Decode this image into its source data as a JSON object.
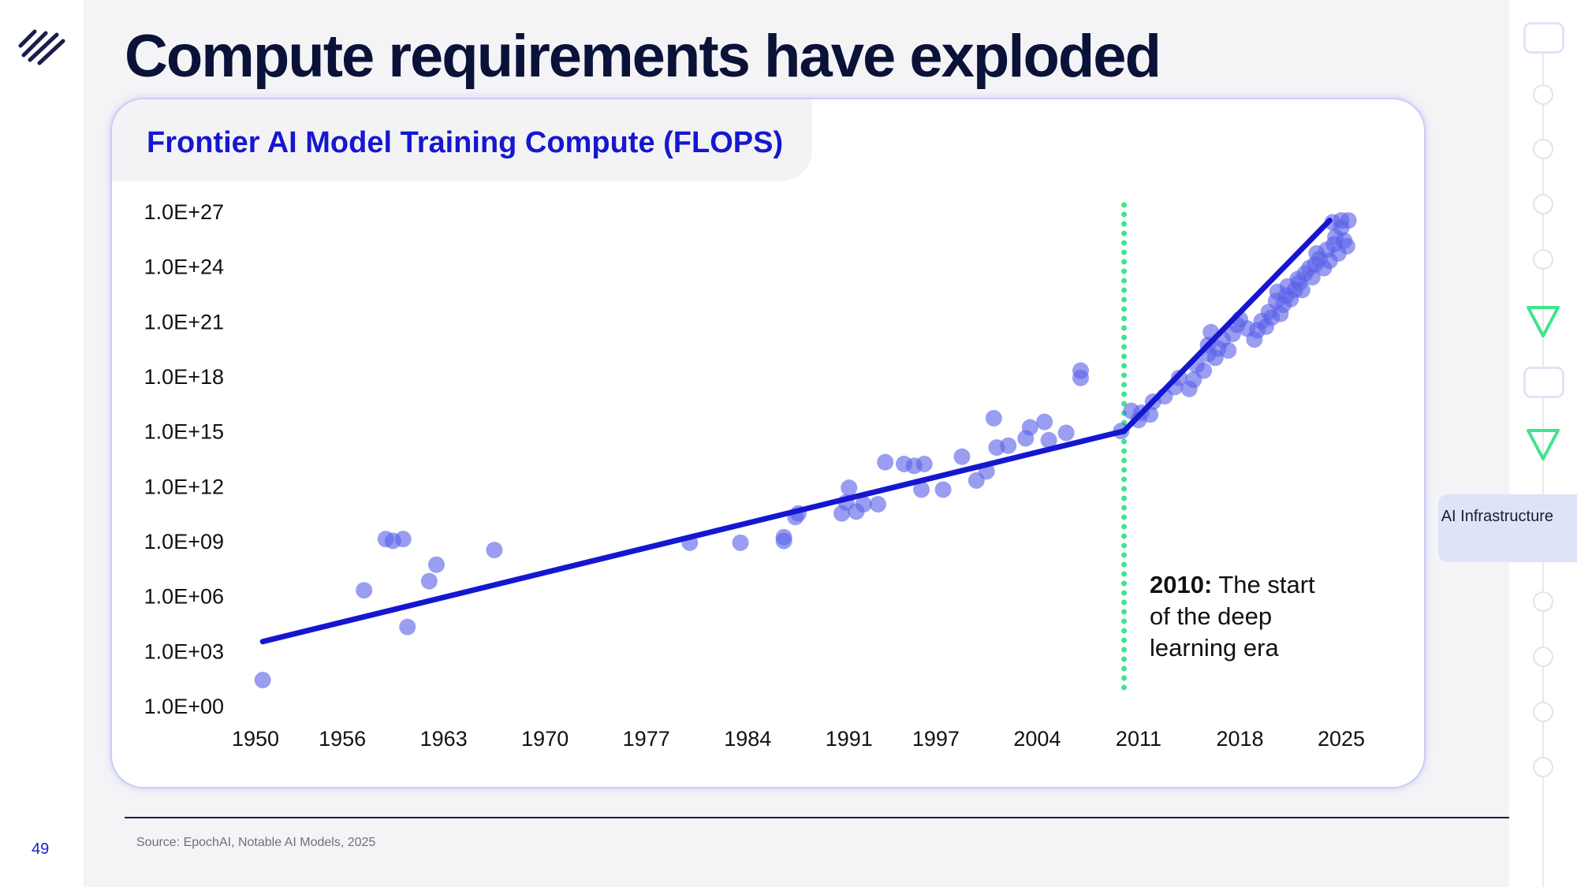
{
  "slide": {
    "title": "Compute requirements have exploded",
    "page_number": "49",
    "source": "Source: EpochAI, Notable AI Models, 2025"
  },
  "nav": {
    "active_label": "AI Infrastructure"
  },
  "colors": {
    "accent": "#1517d0",
    "points": "#5b63e8",
    "marker_line": "#3ee58a",
    "title": "#0a1238"
  },
  "chart_data": {
    "type": "scatter",
    "title": "Frontier AI Model Training Compute (FLOPS)",
    "xlabel": "",
    "ylabel": "",
    "x_ticks": [
      1950,
      1956,
      1963,
      1970,
      1977,
      1984,
      1991,
      1997,
      2004,
      2011,
      2018,
      2025
    ],
    "y_ticks": [
      "1.0E+00",
      "1.0E+03",
      "1.0E+06",
      "1.0E+09",
      "1.0E+12",
      "1.0E+15",
      "1.0E+18",
      "1.0E+21",
      "1.0E+24",
      "1.0E+27"
    ],
    "y_scale": "log",
    "y_range_log10": [
      0,
      27
    ],
    "x_range": [
      1950,
      2025
    ],
    "grid": false,
    "annotation": {
      "x": 2010,
      "bold": "2010:",
      "lines": [
        " The start",
        "of the deep",
        "learning era"
      ]
    },
    "trend_lines": [
      {
        "name": "",
        "points": [
          [
            1950.5,
            3.5
          ],
          [
            2010,
            15.0
          ]
        ]
      },
      {
        "name": "",
        "points": [
          [
            2010,
            15.0
          ],
          [
            2024.2,
            26.5
          ]
        ]
      }
    ],
    "points_log10": [
      [
        1950.5,
        1.4
      ],
      [
        1957.5,
        6.3
      ],
      [
        1959.0,
        9.1
      ],
      [
        1959.5,
        9.0
      ],
      [
        1960.2,
        9.1
      ],
      [
        1960.5,
        4.3
      ],
      [
        1962.0,
        6.8
      ],
      [
        1962.5,
        7.7
      ],
      [
        1966.5,
        8.5
      ],
      [
        1980.0,
        8.9
      ],
      [
        1983.5,
        8.9
      ],
      [
        1986.5,
        9.0
      ],
      [
        1986.5,
        9.2
      ],
      [
        1987.3,
        10.3
      ],
      [
        1987.5,
        10.5
      ],
      [
        1990.5,
        10.5
      ],
      [
        1990.8,
        11.1
      ],
      [
        1991.0,
        11.9
      ],
      [
        1991.5,
        10.6
      ],
      [
        1992.0,
        11.0
      ],
      [
        1993.0,
        11.0
      ],
      [
        1993.5,
        13.3
      ],
      [
        1994.8,
        13.2
      ],
      [
        1995.5,
        13.1
      ],
      [
        1996.0,
        11.8
      ],
      [
        1996.2,
        13.2
      ],
      [
        1997.5,
        11.8
      ],
      [
        1998.8,
        13.6
      ],
      [
        1999.8,
        12.3
      ],
      [
        2000.5,
        12.8
      ],
      [
        2001.0,
        15.7
      ],
      [
        2001.2,
        14.1
      ],
      [
        2002.0,
        14.2
      ],
      [
        2003.2,
        14.6
      ],
      [
        2003.5,
        15.2
      ],
      [
        2004.5,
        15.5
      ],
      [
        2004.8,
        14.5
      ],
      [
        2006.0,
        14.9
      ],
      [
        2007.0,
        17.9
      ],
      [
        2007.0,
        18.3
      ],
      [
        2009.8,
        15.0
      ],
      [
        2010.5,
        16.1
      ],
      [
        2011.0,
        15.6
      ],
      [
        2011.2,
        16.0
      ],
      [
        2011.8,
        15.9
      ],
      [
        2012.0,
        16.6
      ],
      [
        2012.8,
        16.9
      ],
      [
        2013.5,
        17.4
      ],
      [
        2013.8,
        17.9
      ],
      [
        2014.5,
        17.3
      ],
      [
        2014.8,
        17.8
      ],
      [
        2015.0,
        18.6
      ],
      [
        2015.5,
        18.3
      ],
      [
        2015.8,
        19.2
      ],
      [
        2015.8,
        19.7
      ],
      [
        2016.0,
        20.4
      ],
      [
        2016.3,
        19.0
      ],
      [
        2016.5,
        19.5
      ],
      [
        2016.8,
        20.0
      ],
      [
        2017.2,
        19.4
      ],
      [
        2017.5,
        20.3
      ],
      [
        2017.8,
        20.8
      ],
      [
        2018.0,
        21.1
      ],
      [
        2018.5,
        20.6
      ],
      [
        2019.0,
        20.0
      ],
      [
        2019.2,
        20.5
      ],
      [
        2019.5,
        21.0
      ],
      [
        2019.8,
        20.7
      ],
      [
        2020.0,
        21.5
      ],
      [
        2020.2,
        21.2
      ],
      [
        2020.5,
        22.1
      ],
      [
        2020.6,
        22.6
      ],
      [
        2020.8,
        21.4
      ],
      [
        2021.0,
        21.9
      ],
      [
        2021.2,
        22.4
      ],
      [
        2021.3,
        22.9
      ],
      [
        2021.5,
        22.2
      ],
      [
        2021.8,
        22.7
      ],
      [
        2022.0,
        23.3
      ],
      [
        2022.1,
        23.1
      ],
      [
        2022.3,
        22.7
      ],
      [
        2022.5,
        23.6
      ],
      [
        2022.8,
        23.9
      ],
      [
        2023.0,
        23.4
      ],
      [
        2023.2,
        24.1
      ],
      [
        2023.3,
        24.7
      ],
      [
        2023.5,
        24.4
      ],
      [
        2023.8,
        23.9
      ],
      [
        2024.0,
        24.9
      ],
      [
        2024.2,
        24.3
      ],
      [
        2024.5,
        25.2
      ],
      [
        2024.6,
        25.6
      ],
      [
        2024.8,
        24.7
      ],
      [
        2025.0,
        26.1
      ],
      [
        2025.2,
        25.4
      ],
      [
        2025.4,
        25.1
      ],
      [
        2024.4,
        26.4
      ],
      [
        2025.0,
        26.5
      ],
      [
        2025.5,
        26.5
      ]
    ]
  }
}
